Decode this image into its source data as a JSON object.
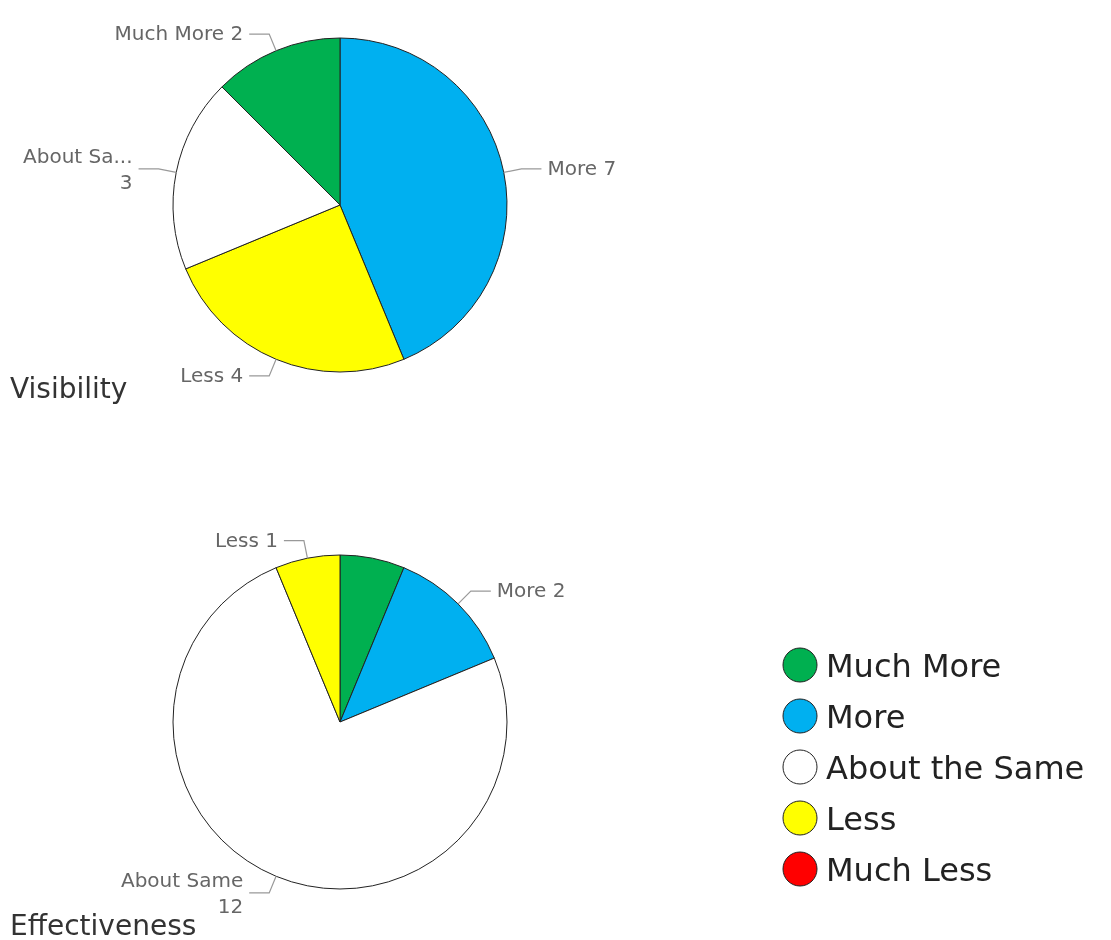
{
  "chart_data": [
    {
      "type": "pie",
      "title": "Visibility",
      "categories": [
        "More",
        "Less",
        "About Sa...",
        "Much More"
      ],
      "values": [
        7,
        4,
        3,
        2
      ],
      "colors": [
        "#00b0f0",
        "#ffff00",
        "#ffffff",
        "#00b050"
      ],
      "data_labels": true
    },
    {
      "type": "pie",
      "title": "Effectiveness",
      "categories": [
        "Much More",
        "More",
        "About the Same",
        "Less",
        "Much Less"
      ],
      "values": [
        1,
        2,
        12,
        1,
        0
      ],
      "colors": [
        "#00b050",
        "#00b0f0",
        "#ffffff",
        "#ffff00",
        "#ff0000"
      ],
      "value_labels": [
        null,
        "More 2",
        "About Same 12",
        "Less 1",
        null
      ],
      "legend": "right"
    }
  ]
}
